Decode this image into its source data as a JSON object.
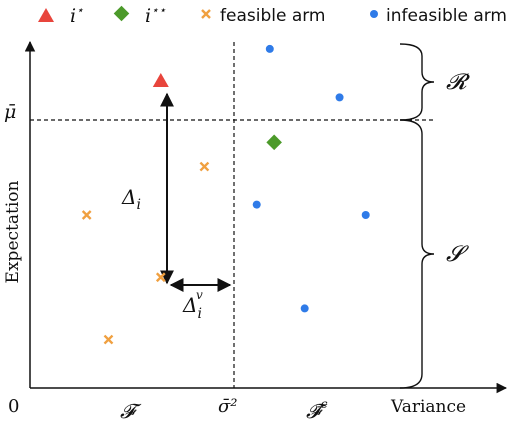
{
  "legend": {
    "opt_label": "i",
    "opt_sup": "⋆",
    "opt2_label": "i",
    "opt2_sup": "⋆⋆",
    "feasible_label": "feasible arm",
    "infeasible_label": "infeasible arm"
  },
  "colors": {
    "opt": "#e8453c",
    "opt2": "#4c9a2a",
    "feasible": "#f0a040",
    "infeasible": "#2f7be8",
    "axis": "#111111"
  },
  "axes": {
    "origin": "0",
    "x_label": "Variance",
    "y_label": "Expectation"
  },
  "annotations": {
    "mu_bar": "μ̄",
    "sigma_bar_sq": "σ̄²",
    "delta_i": "Δ",
    "delta_i_sub": "i",
    "delta_v": "Δ",
    "delta_v_sub": "i",
    "delta_v_sup": "v",
    "region_F": "𝓕",
    "region_Fc": "𝓕̄",
    "region_Fc_sup": "c",
    "set_R": "𝓡",
    "set_S": "𝓢"
  },
  "arms": {
    "optimal": [
      {
        "variance": 0.3,
        "expectation": 0.89
      }
    ],
    "second_optimal": [
      {
        "variance": 0.56,
        "expectation": 0.71
      }
    ],
    "feasible": [
      {
        "variance": 0.4,
        "expectation": 0.64
      },
      {
        "variance": 0.13,
        "expectation": 0.5
      },
      {
        "variance": 0.3,
        "expectation": 0.32
      },
      {
        "variance": 0.18,
        "expectation": 0.14
      }
    ],
    "infeasible": [
      {
        "variance": 0.55,
        "expectation": 0.98
      },
      {
        "variance": 0.71,
        "expectation": 0.84
      },
      {
        "variance": 0.52,
        "expectation": 0.53
      },
      {
        "variance": 0.77,
        "expectation": 0.5
      },
      {
        "variance": 0.63,
        "expectation": 0.23
      }
    ]
  },
  "thresholds": {
    "sigma_bar_sq": 0.47,
    "mu_bar": 0.81
  }
}
